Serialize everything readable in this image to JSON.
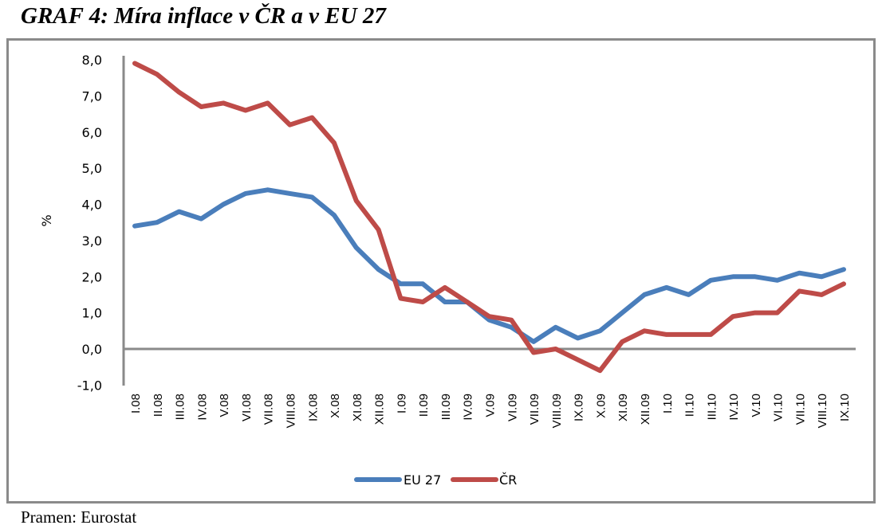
{
  "title": "GRAF 4: Míra inflace v ČR a v EU 27",
  "source": "Pramen: Eurostat",
  "chart_data": {
    "type": "line",
    "title": "GRAF 4: Míra inflace v ČR a v EU 27",
    "xlabel": "",
    "ylabel": "%",
    "ylim": [
      -1,
      8
    ],
    "yticks": [
      8,
      7,
      6,
      5,
      4,
      3,
      2,
      1,
      0,
      -1
    ],
    "ytick_labels": [
      "8,0",
      "7,0",
      "6,0",
      "5,0",
      "4,0",
      "3,0",
      "2,0",
      "1,0",
      "0,0",
      "-1,0"
    ],
    "grid": false,
    "legend_position": "bottom",
    "categories": [
      "I.08",
      "II.08",
      "III.08",
      "IV.08",
      "V.08",
      "VI.08",
      "VII.08",
      "VIII.08",
      "IX.08",
      "X.08",
      "XI.08",
      "XII.08",
      "I.09",
      "II.09",
      "III.09",
      "IV.09",
      "V.09",
      "VI.09",
      "VII.09",
      "VIII.09",
      "IX.09",
      "X.09",
      "XI.09",
      "XII.09",
      "I.10",
      "II.10",
      "III.10",
      "IV.10",
      "V.10",
      "VI.10",
      "VII.10",
      "VIII.10",
      "IX.10"
    ],
    "series": [
      {
        "name": "EU 27",
        "color": "#4a7ebb",
        "values": [
          3.4,
          3.5,
          3.8,
          3.6,
          4.0,
          4.3,
          4.4,
          4.3,
          4.2,
          3.7,
          2.8,
          2.2,
          1.8,
          1.8,
          1.3,
          1.3,
          0.8,
          0.6,
          0.2,
          0.6,
          0.3,
          0.5,
          1.0,
          1.5,
          1.7,
          1.5,
          1.9,
          2.0,
          2.0,
          1.9,
          2.1,
          2.0,
          2.2
        ]
      },
      {
        "name": "ČR",
        "color": "#be4b48",
        "values": [
          7.9,
          7.6,
          7.1,
          6.7,
          6.8,
          6.6,
          6.8,
          6.2,
          6.4,
          5.7,
          4.1,
          3.3,
          1.4,
          1.3,
          1.7,
          1.3,
          0.9,
          0.8,
          -0.1,
          0.0,
          -0.3,
          -0.6,
          0.2,
          0.5,
          0.4,
          0.4,
          0.4,
          0.9,
          1.0,
          1.0,
          1.6,
          1.5,
          1.8
        ]
      }
    ]
  }
}
